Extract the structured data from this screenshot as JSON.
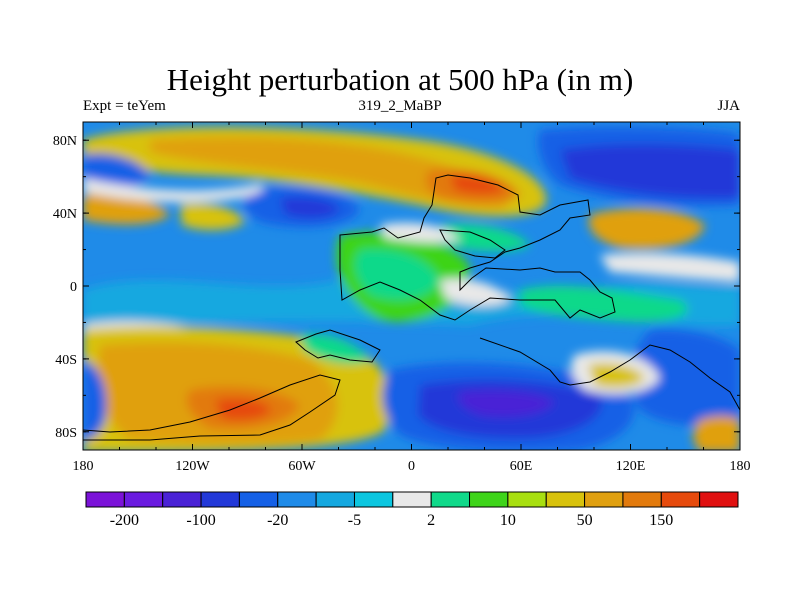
{
  "title": "Height perturbation at 500 hPa (in m)",
  "left_label": "Expt = teYem",
  "center_label": "319_2_MaBP",
  "right_label": "JJA",
  "x_ticks": [
    "180",
    "120W",
    "60W",
    "0",
    "60E",
    "120E",
    "180"
  ],
  "y_ticks": [
    "80N",
    "40N",
    "0",
    "40S",
    "80S"
  ],
  "colorbar": {
    "colors": [
      "#7b12d8",
      "#6a1be0",
      "#4a22d6",
      "#2238d8",
      "#1560e6",
      "#1f8be8",
      "#15a8e0",
      "#0cc6e0",
      "#e8e8e8",
      "#10d98a",
      "#3ed419",
      "#a8df10",
      "#d8c20c",
      "#e0a010",
      "#e27a0c",
      "#e64a0c",
      "#e01010"
    ],
    "labels": [
      "-200",
      "-100",
      "-20",
      "-5",
      "2",
      "10",
      "50",
      "150"
    ]
  },
  "colors": {
    "frame": "#000000",
    "neutral": "#e8e8e8"
  }
}
